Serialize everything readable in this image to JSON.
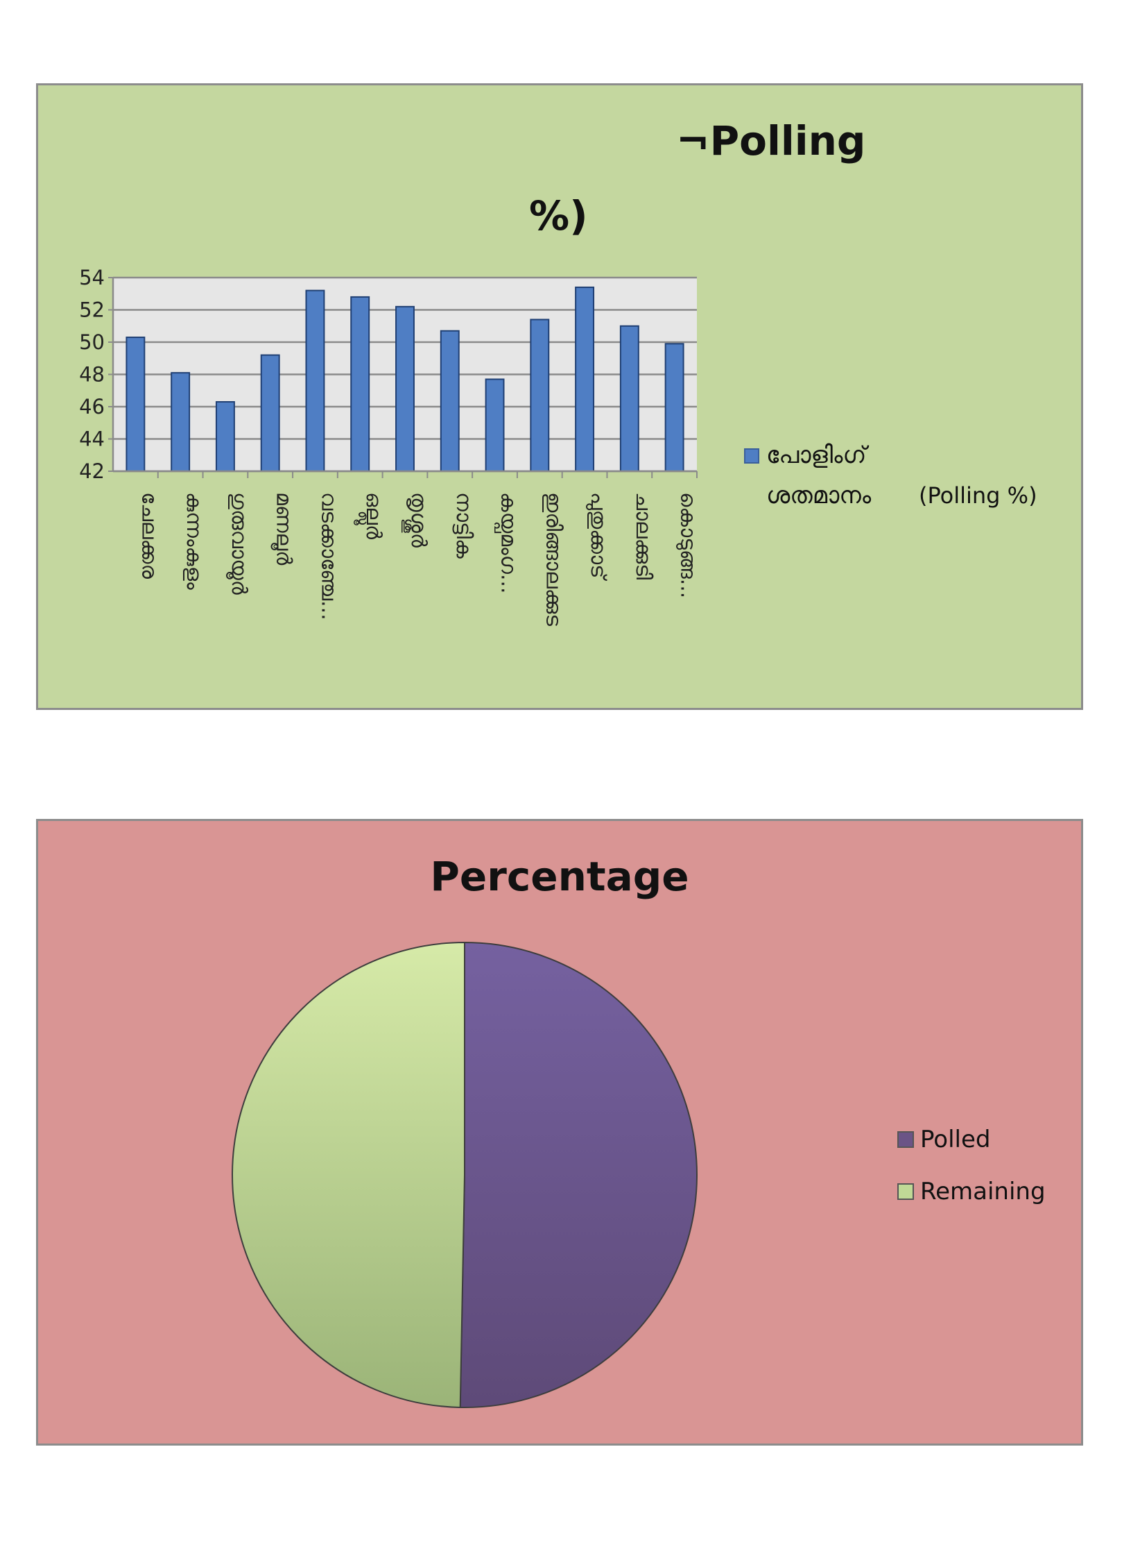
{
  "chart_data": [
    {
      "type": "bar",
      "title_line1": "¬Polling",
      "title_line2": "%)",
      "background": "#c4d79f",
      "plot_background": "#e6e6e6",
      "bar_color": "#4f7ec4",
      "categories": [
        "ചേലക്കര",
        "കുന്നംകുളം",
        "ഗുരുവായൂർ",
        "മണലൂർ",
        "വടക്കാഞ്ചേ...",
        "ഒല്ലൂർ",
        "തൃശ്ശൂർ",
        "നാട്ടിക",
        "കയ്പമംഗ...",
        "ഇരിങ്ങാലക്കുട",
        "പുതുക്കാട്",
        "ചാലക്കുടി",
        "കൊടുങ്ങ..."
      ],
      "series": [
        {
          "name": "പോളിംഗ് ശതമാനം (Polling %)",
          "values": [
            50.3,
            48.1,
            46.3,
            49.2,
            53.2,
            52.8,
            52.2,
            50.7,
            47.7,
            51.4,
            53.4,
            51.0,
            49.9
          ]
        }
      ],
      "ylim": [
        42,
        54
      ],
      "yticks": [
        42,
        44,
        46,
        48,
        50,
        52,
        54
      ],
      "grid": true,
      "legend": {
        "placement": "right",
        "line1": "പോളിംഗ്",
        "line2": "ശതമാനം",
        "line2b": "(Polling %)"
      }
    },
    {
      "type": "pie",
      "title": "Percentage",
      "background": "#d99594",
      "slices": [
        {
          "name": "Polled",
          "value": 50.3,
          "color": "#6b5486"
        },
        {
          "name": "Remaining",
          "value": 49.7,
          "color": "#c0d996"
        }
      ],
      "legend": {
        "placement": "right"
      }
    }
  ]
}
